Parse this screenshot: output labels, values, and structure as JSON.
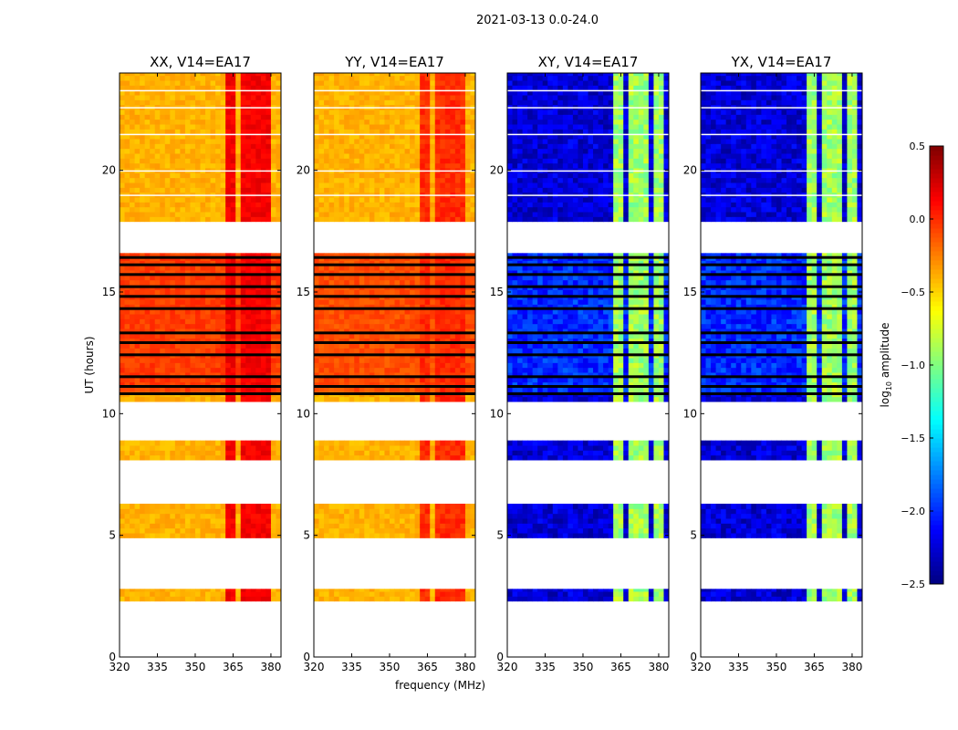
{
  "chart_data": {
    "type": "heatmap",
    "suptitle": "2021-03-13 0.0-24.0",
    "xlabel": "frequency (MHz)",
    "ylabel": "UT (hours)",
    "xlim": [
      320,
      384
    ],
    "ylim": [
      0,
      24
    ],
    "xticks": [
      "320",
      "335",
      "350",
      "365",
      "380"
    ],
    "xtick_values": [
      320,
      335,
      350,
      365,
      380
    ],
    "yticks": [
      "0",
      "5",
      "10",
      "15",
      "20"
    ],
    "ytick_values": [
      0,
      5,
      10,
      15,
      20
    ],
    "colorbar": {
      "label_main": "log",
      "label_sub": "10",
      "label_rest": " amplitude",
      "range": [
        -2.5,
        0.5
      ],
      "ticks": [
        "0.5",
        "0.0",
        "−0.5",
        "−1.0",
        "−1.5",
        "−2.0",
        "−2.5"
      ],
      "tick_values": [
        0.5,
        0.0,
        -0.5,
        -1.0,
        -1.5,
        -2.0,
        -2.5
      ],
      "colormap": "jet"
    },
    "time_ranges_with_data": [
      [
        2.3,
        2.8
      ],
      [
        4.9,
        6.3
      ],
      [
        8.1,
        8.9
      ],
      [
        10.5,
        16.6
      ],
      [
        17.9,
        24.0
      ]
    ],
    "flagged_black_rows": [
      10.8,
      11.1,
      11.5,
      12.4,
      12.9,
      13.3,
      14.3,
      14.8,
      15.2,
      15.7,
      16.1,
      16.4
    ],
    "panels": [
      {
        "title": "XX, V14=EA17",
        "base": -0.4,
        "active_base": -0.05,
        "band_level": 0.15,
        "bands": [
          [
            362,
            366
          ],
          [
            368,
            371
          ],
          [
            373,
            376
          ],
          [
            377,
            380
          ]
        ]
      },
      {
        "title": "YY, V14=EA17",
        "base": -0.4,
        "active_base": -0.1,
        "band_level": 0.0,
        "bands": [
          [
            362,
            366
          ],
          [
            368,
            371
          ],
          [
            373,
            376
          ],
          [
            377,
            380
          ]
        ]
      },
      {
        "title": "XY, V14=EA17",
        "base": -2.25,
        "active_base": -2.0,
        "band_level": -0.9,
        "bands": [
          [
            363,
            366
          ],
          [
            368,
            371
          ],
          [
            373,
            376
          ],
          [
            378,
            381
          ]
        ]
      },
      {
        "title": "YX, V14=EA17",
        "base": -2.25,
        "active_base": -2.0,
        "band_level": -0.9,
        "bands": [
          [
            363,
            366
          ],
          [
            368,
            371
          ],
          [
            373,
            376
          ],
          [
            378,
            381
          ]
        ]
      }
    ]
  }
}
